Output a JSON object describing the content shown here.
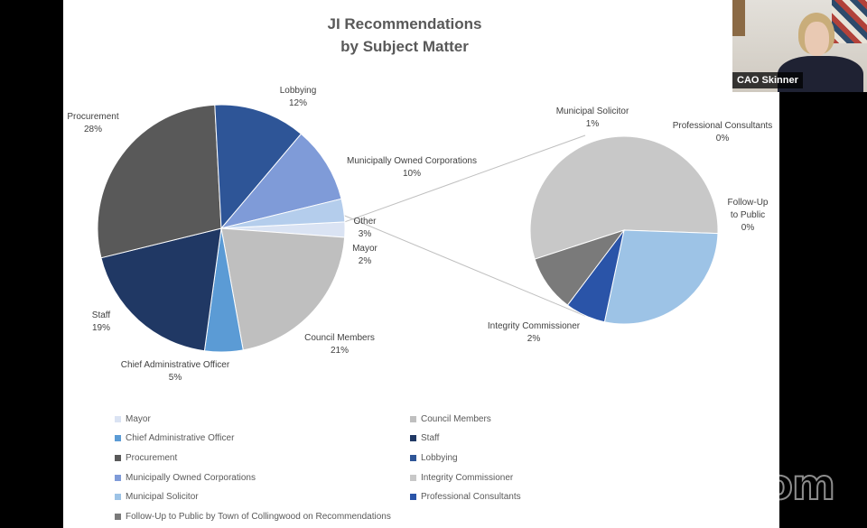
{
  "chart_data": {
    "type": "pie",
    "title": [
      "JI Recommendations",
      "by Subject Matter"
    ],
    "subtype": "pie-of-pie",
    "main_slices": [
      {
        "name": "Mayor",
        "value": 2,
        "label": "Mayor",
        "pct": "2%",
        "color": "#dae3f3"
      },
      {
        "name": "Council Members",
        "value": 21,
        "label": "Council Members",
        "pct": "21%",
        "color": "#bfbfbf"
      },
      {
        "name": "Chief Administrative Officer",
        "value": 5,
        "label": "Chief Administrative Officer",
        "pct": "5%",
        "color": "#5b9bd5"
      },
      {
        "name": "Staff",
        "value": 19,
        "label": "Staff",
        "pct": "19%",
        "color": "#203864"
      },
      {
        "name": "Procurement",
        "value": 28,
        "label": "Procurement",
        "pct": "28%",
        "color": "#595959"
      },
      {
        "name": "Lobbying",
        "value": 12,
        "label": "Lobbying",
        "pct": "12%",
        "color": "#2e5597"
      },
      {
        "name": "Municipally Owned Corporations",
        "value": 10,
        "label": "Municipally Owned Corporations",
        "pct": "10%",
        "color": "#7f9bd8"
      },
      {
        "name": "Other",
        "value": 3,
        "label": "Other",
        "pct": "3%",
        "color": "#b4cdec"
      }
    ],
    "secondary_slices": [
      {
        "name": "Integrity Commissioner",
        "value": 2,
        "label": "Integrity Commissioner",
        "pct": "2%",
        "color": "#c8c8c8"
      },
      {
        "name": "Municipal Solicitor",
        "value": 1,
        "label": "Municipal Solicitor",
        "pct": "1%",
        "color": "#9dc3e6"
      },
      {
        "name": "Professional Consultants",
        "value": 0.25,
        "label": "Professional Consultants",
        "pct": "0%",
        "color": "#2a54a8"
      },
      {
        "name": "Follow-Up to Public by Town of Collingwood on Recommendations",
        "value": 0.35,
        "label": "Follow-Up to Public",
        "pct": "0%",
        "color": "#7a7a7a"
      }
    ],
    "legend_position": "bottom",
    "legend": [
      {
        "label": "Mayor",
        "color": "#dae3f3"
      },
      {
        "label": "Council Members",
        "color": "#bfbfbf"
      },
      {
        "label": "Chief Administrative Officer",
        "color": "#5b9bd5"
      },
      {
        "label": "Staff",
        "color": "#203864"
      },
      {
        "label": "Procurement",
        "color": "#595959"
      },
      {
        "label": "Lobbying",
        "color": "#2e5597"
      },
      {
        "label": "Municipally Owned Corporations",
        "color": "#7f9bd8"
      },
      {
        "label": "Integrity Commissioner",
        "color": "#c8c8c8"
      },
      {
        "label": "Municipal Solicitor",
        "color": "#9dc3e6"
      },
      {
        "label": "Professional Consultants",
        "color": "#2a54a8"
      },
      {
        "label": "Follow-Up to Public by Town of Collingwood on Recommendations",
        "color": "#7a7a7a"
      }
    ]
  },
  "video": {
    "participant_name": "CAO Skinner"
  },
  "app": {
    "watermark": "zoom"
  }
}
